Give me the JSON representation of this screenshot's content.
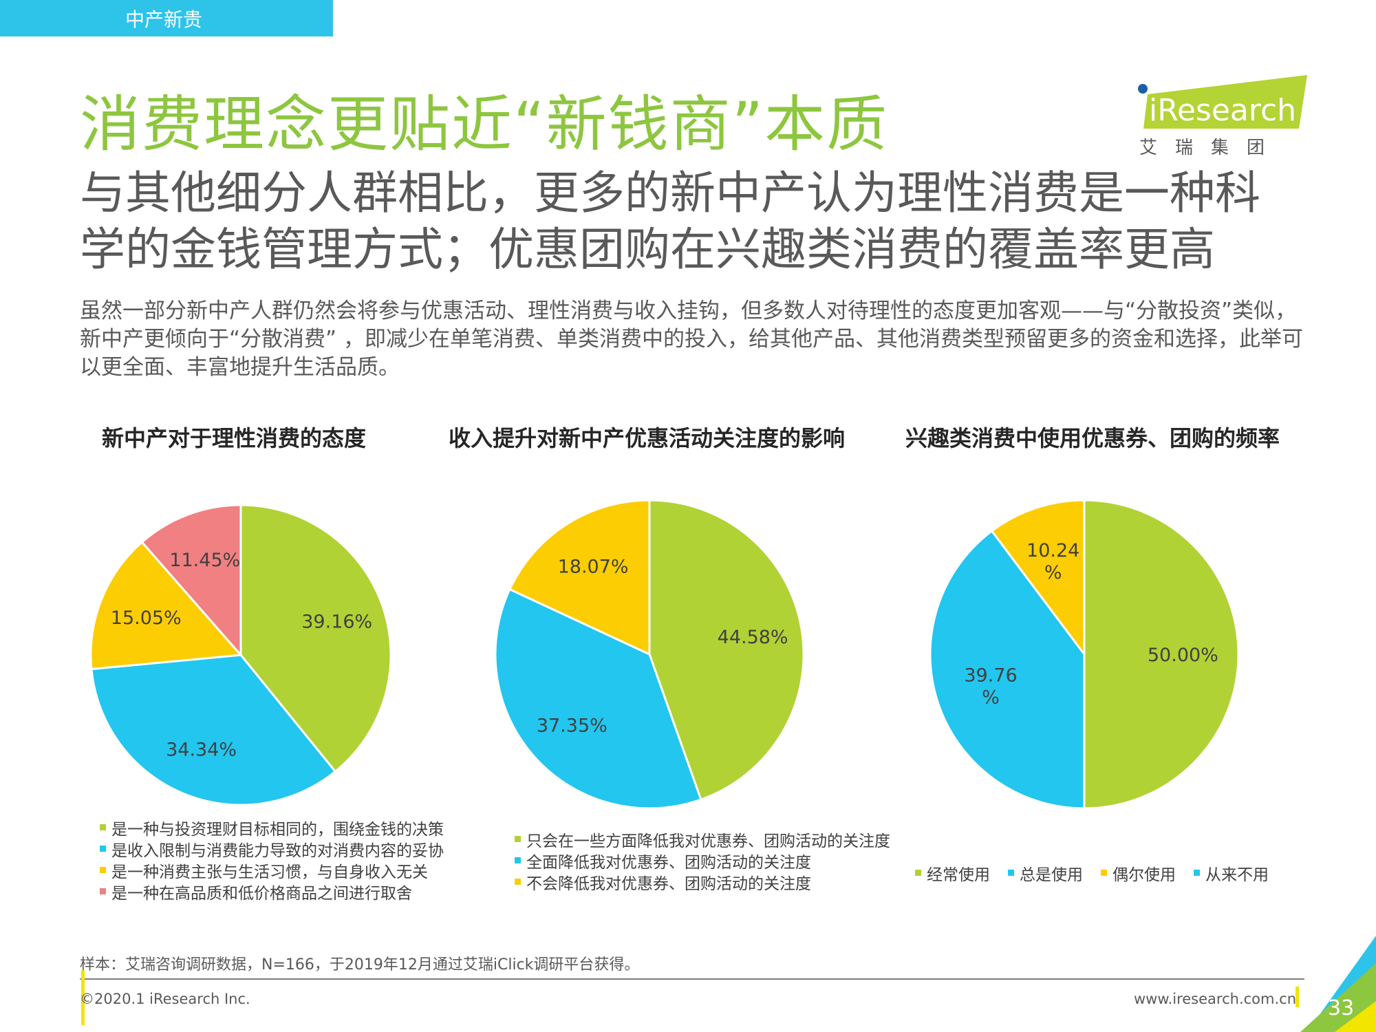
{
  "header": {
    "section_tab": "中产新贵"
  },
  "title": "消费理念更贴近“新钱商”本质",
  "logo": {
    "brand": "iResearch",
    "subtitle": "艾　瑞　集　团",
    "colors": {
      "green": "#b4d334",
      "blue": "#1a5fa8"
    }
  },
  "subtitle": "与其他细分人群相比，更多的新中产认为理性消费是一种科学的金钱管理方式；优惠团购在兴趣类消费的覆盖率更高",
  "body_text": "虽然一部分新中产人群仍然会将参与优惠活动、理性消费与收入挂钩，但多数人对待理性的态度更加客观——与“分散投资”类似，新中产更倾向于“分散消费” ，即减少在单笔消费、单类消费中的投入，给其他产品、其他消费类型预留更多的资金和选择，此举可以更全面、丰富地提升生活品质。",
  "colors": {
    "green": "#b1d234",
    "blue": "#22c6ef",
    "yellow": "#fdcd03",
    "pink": "#f08082",
    "title_green": "#8dc63f"
  },
  "chart_data": [
    {
      "type": "pie",
      "title": "新中产对于理性消费的态度",
      "categories": [
        "是一种与投资理财目标相同的，围绕金钱的决策",
        "是收入限制与消费能力导致的对消费内容的妥协",
        "是一种消费主张与生活习惯，与自身收入无关",
        "是一种在高品质和低价格商品之间进行取舍"
      ],
      "values": [
        39.16,
        34.34,
        15.05,
        11.45
      ],
      "labels": [
        "39.16%",
        "34.34%",
        "15.05%",
        "11.45%"
      ],
      "colors": [
        "#b1d234",
        "#22c6ef",
        "#fdcd03",
        "#f08082"
      ],
      "legend_position": "bottom"
    },
    {
      "type": "pie",
      "title": "收入提升对新中产优惠活动关注度的影响",
      "categories": [
        "只会在一些方面降低我对优惠券、团购活动的关注度",
        "全面降低我对优惠券、团购活动的关注度",
        "不会降低我对优惠券、团购活动的关注度"
      ],
      "values": [
        44.58,
        37.35,
        18.07
      ],
      "labels": [
        "44.58%",
        "37.35%",
        "18.07%"
      ],
      "colors": [
        "#b1d234",
        "#22c6ef",
        "#fdcd03"
      ],
      "legend_position": "bottom"
    },
    {
      "type": "pie",
      "title": "兴趣类消费中使用优惠券、团购的频率",
      "categories": [
        "经常使用",
        "总是使用",
        "偶尔使用",
        "从来不用"
      ],
      "values": [
        50.0,
        39.76,
        10.24,
        0
      ],
      "labels": [
        "50.00%",
        "39.76\n%",
        "10.24\n%",
        ""
      ],
      "colors": [
        "#b1d234",
        "#22c6ef",
        "#fdcd03",
        "#22c6ef"
      ],
      "legend_position": "bottom"
    }
  ],
  "footer": {
    "source": "样本：艾瑞咨询调研数据，N=166，于2019年12月通过艾瑞iClick调研平台获得。",
    "copyright": "©2020.1 iResearch Inc.",
    "website": "www.iresearch.com.cn",
    "page_number": "33"
  }
}
